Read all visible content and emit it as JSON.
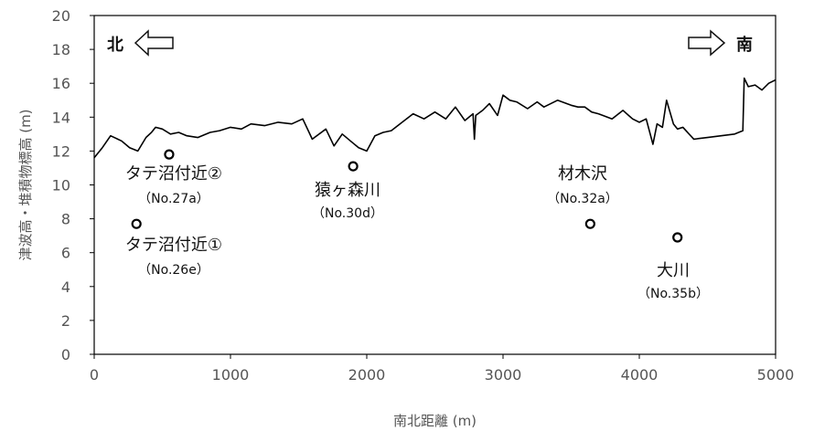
{
  "chart_data": {
    "type": "line",
    "title": "",
    "xlabel": "南北距離 (m)",
    "ylabel": "津波高・堆積物標高 (m)",
    "xlim": [
      0,
      5000
    ],
    "ylim": [
      0,
      20
    ],
    "xticks": [
      0,
      1000,
      2000,
      3000,
      4000,
      5000
    ],
    "yticks": [
      0,
      2,
      4,
      6,
      8,
      10,
      12,
      14,
      16,
      18,
      20
    ],
    "grid": false,
    "legend": "none",
    "direction_labels": {
      "north": "北",
      "south": "南"
    },
    "series": [
      {
        "kind": "line",
        "color": "#000000",
        "x": [
          0,
          60,
          120,
          200,
          260,
          320,
          380,
          420,
          450,
          500,
          560,
          620,
          680,
          760,
          850,
          920,
          1000,
          1080,
          1150,
          1250,
          1350,
          1450,
          1530,
          1600,
          1700,
          1760,
          1820,
          1880,
          1940,
          2000,
          2060,
          2120,
          2180,
          2260,
          2340,
          2420,
          2500,
          2580,
          2650,
          2720,
          2780,
          2790,
          2800,
          2850,
          2900,
          2960,
          3000,
          3050,
          3100,
          3180,
          3250,
          3300,
          3400,
          3500,
          3550,
          3600,
          3650,
          3700,
          3800,
          3880,
          3950,
          4000,
          4050,
          4100,
          4130,
          4170,
          4200,
          4250,
          4280,
          4320,
          4400,
          4500,
          4600,
          4700,
          4760,
          4770,
          4800,
          4850,
          4900,
          4950,
          5000
        ],
        "y": [
          11.6,
          12.2,
          12.9,
          12.6,
          12.2,
          12.0,
          12.8,
          13.1,
          13.4,
          13.3,
          13.0,
          13.1,
          12.9,
          12.8,
          13.1,
          13.2,
          13.4,
          13.3,
          13.6,
          13.5,
          13.7,
          13.6,
          13.9,
          12.7,
          13.3,
          12.3,
          13.0,
          12.6,
          12.2,
          12.0,
          12.9,
          13.1,
          13.2,
          13.7,
          14.2,
          13.9,
          14.3,
          13.9,
          14.6,
          13.8,
          14.2,
          12.7,
          14.1,
          14.4,
          14.8,
          14.1,
          15.3,
          15.0,
          14.9,
          14.5,
          14.9,
          14.6,
          15.0,
          14.7,
          14.6,
          14.6,
          14.3,
          14.2,
          13.9,
          14.4,
          13.9,
          13.7,
          13.9,
          12.4,
          13.6,
          13.4,
          15.0,
          13.6,
          13.3,
          13.4,
          12.7,
          12.8,
          12.9,
          13.0,
          13.2,
          16.3,
          15.8,
          15.9,
          15.6,
          16.0,
          16.2
        ]
      }
    ],
    "points": [
      {
        "x": 550,
        "y": 11.8,
        "name": "タテ沼付近②",
        "id": "（No.27a）"
      },
      {
        "x": 310,
        "y": 7.7,
        "name": "タテ沼付近①",
        "id": "（No.26e）"
      },
      {
        "x": 1900,
        "y": 11.1,
        "name": "猿ヶ森川",
        "id": "（No.30d）"
      },
      {
        "x": 3640,
        "y": 7.7,
        "name": "材木沢",
        "id": "（No.32a）"
      },
      {
        "x": 4280,
        "y": 6.9,
        "name": "大川",
        "id": "（No.35b）"
      }
    ]
  }
}
